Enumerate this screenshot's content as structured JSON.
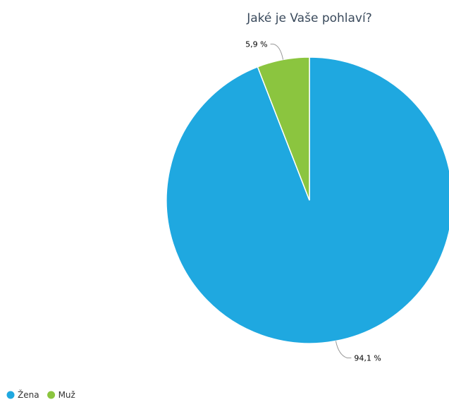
{
  "chart_data": {
    "type": "pie",
    "title": "Jaké je Vaše pohlaví?",
    "categories": [
      "Žena",
      "Muž"
    ],
    "values": [
      94.1,
      5.9
    ],
    "data_labels": [
      "94,1 %",
      "5,9 %"
    ],
    "colors": [
      "#1fa8e0",
      "#8bc53f"
    ],
    "legend": {
      "placement": "bottom-left",
      "entries": [
        "Žena",
        "Muž"
      ]
    }
  }
}
